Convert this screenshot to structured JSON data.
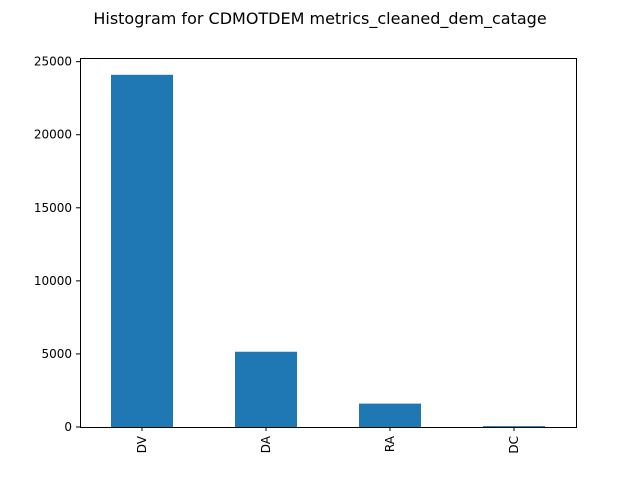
{
  "chart_data": {
    "type": "bar",
    "title": "Histogram for CDMOTDEM metrics_cleaned_dem_catage",
    "xlabel": "",
    "ylabel": "",
    "categories": [
      "DV",
      "DA",
      "RA",
      "DC"
    ],
    "values": [
      24100,
      5150,
      1600,
      60
    ],
    "ylim": [
      0,
      25250
    ],
    "yticks": [
      0,
      5000,
      10000,
      15000,
      20000,
      25000
    ],
    "ytick_labels": [
      "0",
      "5000",
      "10000",
      "15000",
      "20000",
      "25000"
    ],
    "grid": false,
    "legend": "none",
    "bar_color": "#1f77b4"
  }
}
